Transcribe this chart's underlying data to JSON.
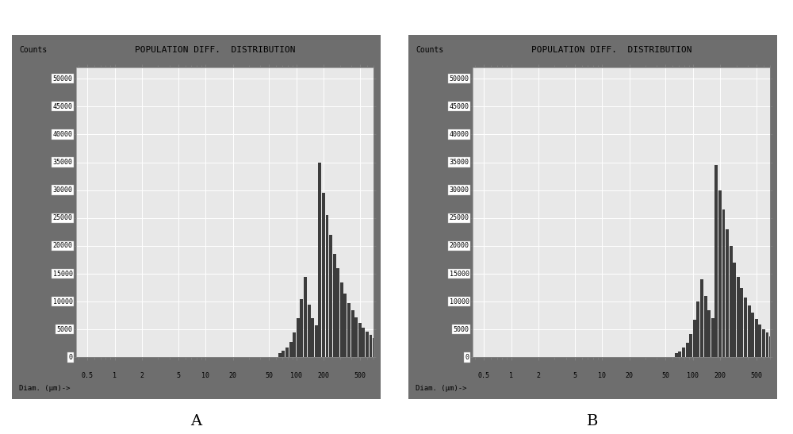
{
  "title": "POPULATION DIFF.  DISTRIBUTION",
  "ylabel": "Counts",
  "xlabel": "Diam. (μm)->",
  "outer_bg": "#6e6e6e",
  "plot_bg_color": "#e8e8e8",
  "bar_color": "#3c3c3c",
  "ytick_values": [
    0,
    5000,
    10000,
    15000,
    20000,
    25000,
    30000,
    35000,
    40000,
    45000,
    50000
  ],
  "ytick_labels": [
    "0",
    "5000",
    "10000",
    "15000",
    "20000",
    "25000",
    "30000",
    "35000",
    "40000",
    "45000",
    "50000"
  ],
  "xtick_positions": [
    0.5,
    1,
    2,
    5,
    10,
    20,
    50,
    100,
    200,
    500
  ],
  "xtick_labels": [
    "0.5",
    "1",
    "2",
    "5",
    "10",
    "20",
    "50",
    "100",
    "200",
    "500"
  ],
  "ylim": [
    0,
    52000
  ],
  "xlim": [
    0.38,
    700
  ],
  "panel_A_bars": [
    [
      1.8,
      800
    ],
    [
      1.84,
      1200
    ],
    [
      1.88,
      1800
    ],
    [
      1.92,
      2800
    ],
    [
      1.96,
      4500
    ],
    [
      2.0,
      7000
    ],
    [
      2.04,
      10500
    ],
    [
      2.08,
      14500
    ],
    [
      2.12,
      9500
    ],
    [
      2.16,
      7000
    ],
    [
      2.2,
      5800
    ],
    [
      2.24,
      35000
    ],
    [
      2.28,
      29500
    ],
    [
      2.32,
      25500
    ],
    [
      2.36,
      22000
    ],
    [
      2.4,
      18500
    ],
    [
      2.44,
      16000
    ],
    [
      2.48,
      13500
    ],
    [
      2.52,
      11500
    ],
    [
      2.56,
      9800
    ],
    [
      2.6,
      8400
    ],
    [
      2.64,
      7200
    ],
    [
      2.68,
      6200
    ],
    [
      2.72,
      5300
    ],
    [
      2.76,
      4600
    ],
    [
      2.8,
      4000
    ],
    [
      2.84,
      3500
    ],
    [
      2.88,
      3000
    ],
    [
      2.92,
      2600
    ],
    [
      2.96,
      2300
    ],
    [
      3.04,
      1900
    ],
    [
      3.14,
      1550
    ],
    [
      3.25,
      1250
    ],
    [
      3.4,
      980
    ],
    [
      3.58,
      760
    ],
    [
      3.8,
      570
    ],
    [
      4.1,
      410
    ],
    [
      4.5,
      280
    ],
    [
      5.0,
      180
    ],
    [
      5.6,
      110
    ],
    [
      6.3,
      65
    ],
    [
      7.0,
      38
    ],
    [
      8.0,
      22
    ],
    [
      9.0,
      13
    ],
    [
      11.0,
      9700
    ],
    [
      14.0,
      60
    ],
    [
      18.0,
      35
    ],
    [
      25.0,
      18
    ],
    [
      35.0,
      8
    ]
  ],
  "panel_B_bars": [
    [
      1.8,
      700
    ],
    [
      1.84,
      1100
    ],
    [
      1.88,
      1700
    ],
    [
      1.92,
      2600
    ],
    [
      1.96,
      4200
    ],
    [
      2.0,
      6800
    ],
    [
      2.04,
      10000
    ],
    [
      2.08,
      14000
    ],
    [
      2.12,
      11000
    ],
    [
      2.16,
      8500
    ],
    [
      2.2,
      7000
    ],
    [
      2.24,
      34500
    ],
    [
      2.28,
      30000
    ],
    [
      2.32,
      26500
    ],
    [
      2.36,
      23000
    ],
    [
      2.4,
      20000
    ],
    [
      2.44,
      17000
    ],
    [
      2.48,
      14500
    ],
    [
      2.52,
      12500
    ],
    [
      2.56,
      10800
    ],
    [
      2.6,
      9300
    ],
    [
      2.64,
      8000
    ],
    [
      2.68,
      6900
    ],
    [
      2.72,
      5900
    ],
    [
      2.76,
      5100
    ],
    [
      2.8,
      4400
    ],
    [
      2.84,
      3800
    ],
    [
      2.88,
      3200
    ],
    [
      2.92,
      2800
    ],
    [
      2.96,
      2400
    ],
    [
      3.04,
      2000
    ],
    [
      3.14,
      1650
    ],
    [
      3.25,
      1350
    ],
    [
      3.4,
      1080
    ],
    [
      3.58,
      840
    ],
    [
      3.8,
      640
    ],
    [
      4.1,
      470
    ],
    [
      4.5,
      340
    ],
    [
      5.0,
      240
    ],
    [
      5.6,
      170
    ],
    [
      6.3,
      120
    ],
    [
      7.0,
      85
    ],
    [
      8.0,
      58
    ],
    [
      9.0,
      38
    ],
    [
      10.5,
      24
    ],
    [
      12.0,
      9700
    ],
    [
      15.0,
      130
    ],
    [
      20.0,
      70
    ],
    [
      28.0,
      30
    ],
    [
      40.0,
      12
    ]
  ],
  "label_A": "A",
  "label_B": "B",
  "title_fontsize": 8,
  "tick_fontsize": 6,
  "ylabel_fontsize": 7,
  "xlabel_fontsize": 6.5,
  "panel_label_fontsize": 14
}
